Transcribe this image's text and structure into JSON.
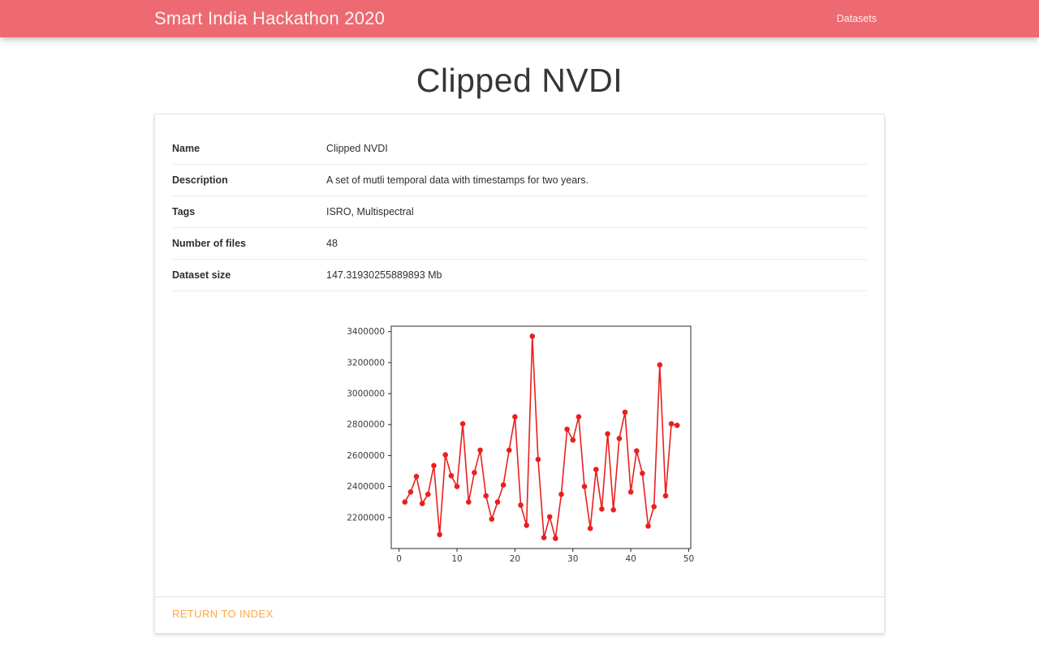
{
  "header": {
    "title": "Smart India Hackathon 2020",
    "nav_datasets": "Datasets"
  },
  "page": {
    "title": "Clipped NVDI"
  },
  "details": {
    "rows": [
      {
        "label": "Name",
        "value": "Clipped NVDI"
      },
      {
        "label": "Description",
        "value": "A set of mutli temporal data with timestamps for two years."
      },
      {
        "label": "Tags",
        "value": "ISRO, Multispectral"
      },
      {
        "label": "Number of files",
        "value": "48"
      },
      {
        "label": "Dataset size",
        "value": "147.31930255889893 Mb"
      }
    ]
  },
  "chart_data": {
    "type": "line",
    "title": "",
    "xlabel": "",
    "ylabel": "",
    "grid": false,
    "legend": null,
    "line_color": "#e8201e",
    "marker": "circle",
    "frame_color": "#2b2b2b",
    "xlim": [
      -1.35,
      50.35
    ],
    "ylim": [
      2000000,
      3435000
    ],
    "x_ticks": [
      0,
      10,
      20,
      30,
      40,
      50
    ],
    "y_ticks": [
      2200000,
      2400000,
      2600000,
      2800000,
      3000000,
      3200000,
      3400000
    ],
    "x": [
      1,
      2,
      3,
      4,
      5,
      6,
      7,
      8,
      9,
      10,
      11,
      12,
      13,
      14,
      15,
      16,
      17,
      18,
      19,
      20,
      21,
      22,
      23,
      24,
      25,
      26,
      27,
      28,
      29,
      30,
      31,
      32,
      33,
      34,
      35,
      36,
      37,
      38,
      39,
      40,
      41,
      42,
      43,
      44,
      45,
      46,
      47,
      48
    ],
    "values": [
      2300000,
      2365000,
      2465000,
      2290000,
      2350000,
      2535000,
      2090000,
      2605000,
      2470000,
      2400000,
      2805000,
      2300000,
      2490000,
      2635000,
      2340000,
      2190000,
      2300000,
      2410000,
      2635000,
      2850000,
      2280000,
      2150000,
      3370000,
      2575000,
      2070000,
      2205000,
      2065000,
      2350000,
      2770000,
      2700000,
      2850000,
      2400000,
      2130000,
      2510000,
      2255000,
      2740000,
      2250000,
      2710000,
      2880000,
      2365000,
      2630000,
      2485000,
      2145000,
      2270000,
      3185000,
      2340000,
      2805000,
      2795000
    ]
  },
  "footer": {
    "return_label": "RETURN TO INDEX"
  },
  "colors": {
    "header_bg": "#ed6a72",
    "link_orange": "#fba947",
    "chart_red": "#e8201e"
  }
}
